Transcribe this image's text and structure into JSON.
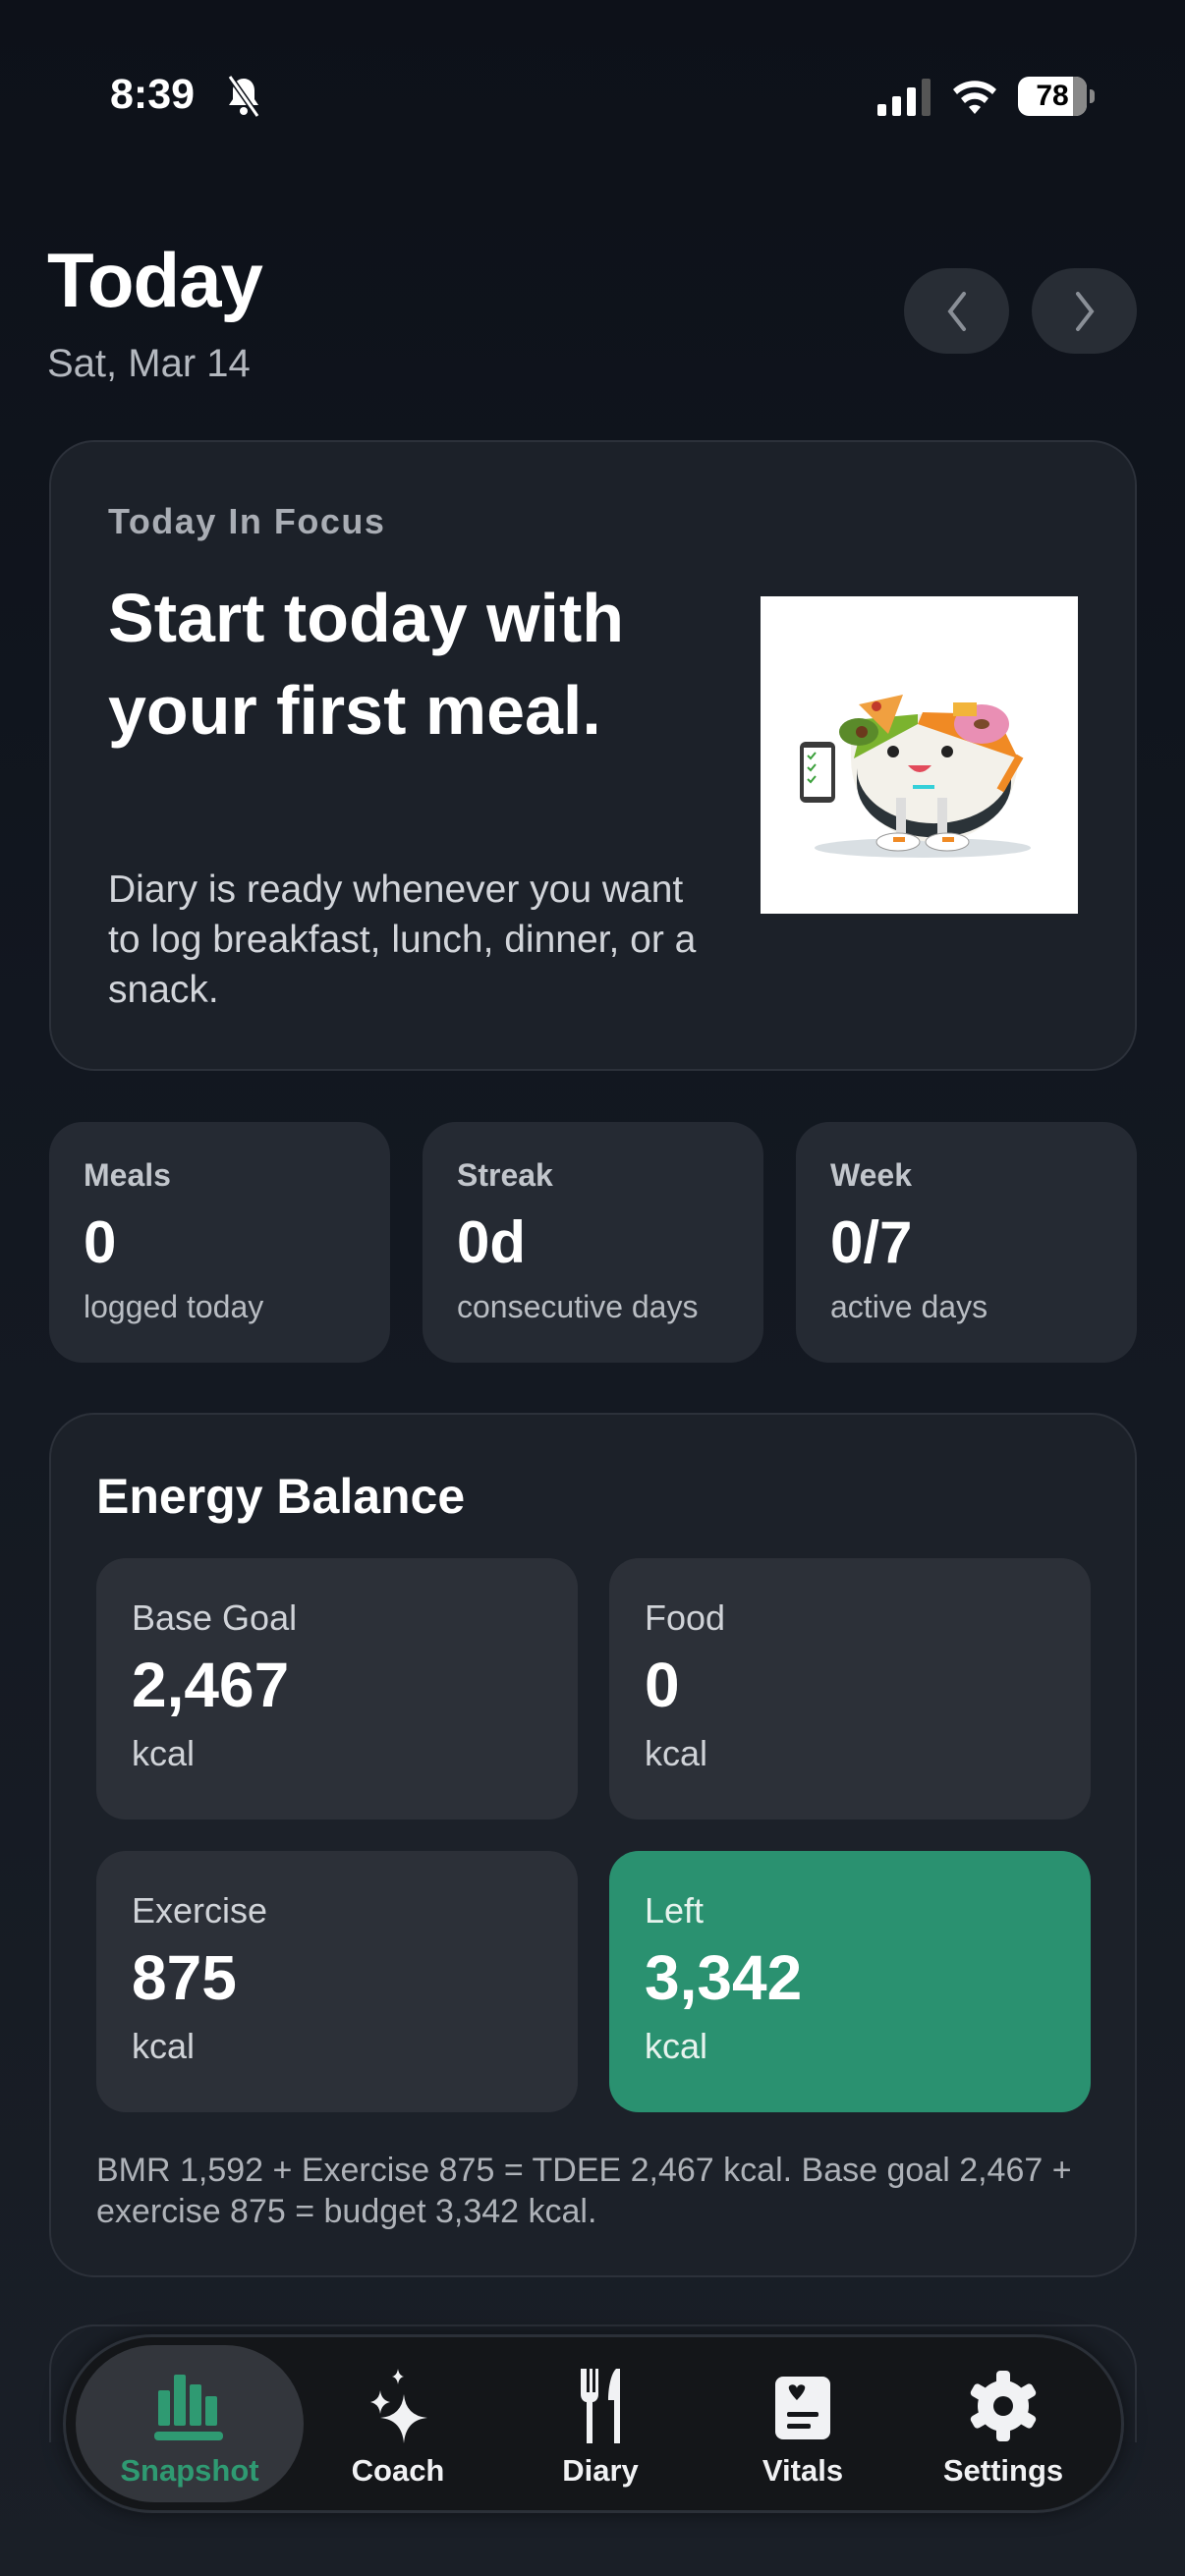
{
  "status_bar": {
    "time": "8:39",
    "battery": "78",
    "silent_icon": "bell-slash-icon",
    "signal_icon": "cellular-signal-icon",
    "wifi_icon": "wifi-icon"
  },
  "header": {
    "title": "Today",
    "date": "Sat, Mar 14",
    "prev_icon": "chevron-left-icon",
    "next_icon": "chevron-right-icon"
  },
  "focus": {
    "kicker": "Today In Focus",
    "headline": "Start today with your first meal.",
    "body": "Diary is ready whenever you want to log breakfast, lunch, dinner, or a snack.",
    "image": "food-bowl-mascot-illustration"
  },
  "stats": [
    {
      "label": "Meals",
      "value": "0",
      "sub": "logged today"
    },
    {
      "label": "Streak",
      "value": "0d",
      "sub": "consecutive days"
    },
    {
      "label": "Week",
      "value": "0/7",
      "sub": "active days"
    }
  ],
  "energy": {
    "title": "Energy Balance",
    "tiles": [
      {
        "label": "Base Goal",
        "value": "2,467",
        "unit": "kcal"
      },
      {
        "label": "Food",
        "value": "0",
        "unit": "kcal"
      },
      {
        "label": "Exercise",
        "value": "875",
        "unit": "kcal"
      },
      {
        "label": "Left",
        "value": "3,342",
        "unit": "kcal"
      }
    ],
    "footnote": "BMR 1,592 + Exercise 875 = TDEE 2,467 kcal. Base goal 2,467 + exercise 875 = budget 3,342 kcal.",
    "accent": "#2a9170"
  },
  "tabs": [
    {
      "label": "Snapshot",
      "icon": "chart-bars-icon",
      "active": true
    },
    {
      "label": "Coach",
      "icon": "sparkles-icon"
    },
    {
      "label": "Diary",
      "icon": "fork-knife-icon"
    },
    {
      "label": "Vitals",
      "icon": "heart-card-icon"
    },
    {
      "label": "Settings",
      "icon": "gear-icon"
    }
  ],
  "colors": {
    "active_tab": "#2f9a72",
    "background": "#0f141c"
  }
}
